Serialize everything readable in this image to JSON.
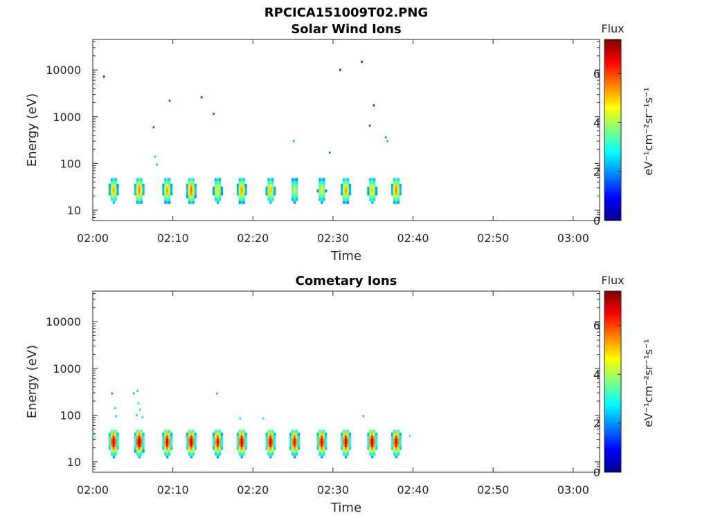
{
  "figure": {
    "title": "RPCICA151009T02.PNG"
  },
  "colors": {
    "axis": "#262626",
    "background": "#ffffff",
    "colormap": "jet"
  },
  "chart_data": [
    {
      "type": "heatmap",
      "title": "Solar Wind Ions",
      "xlabel": "Time",
      "ylabel": "Energy (eV)",
      "x_tick_labels": [
        "02:00",
        "02:10",
        "02:20",
        "02:30",
        "02:40",
        "02:50",
        "03:00"
      ],
      "x_tick_minutes": [
        0,
        10,
        20,
        30,
        40,
        50,
        60
      ],
      "xlim_minutes": [
        0,
        63.3
      ],
      "y_scale": "log",
      "ylim": [
        6,
        45000
      ],
      "y_tick_labels": [
        "10",
        "100",
        "1000",
        "10000"
      ],
      "y_tick_values": [
        10,
        100,
        1000,
        10000
      ],
      "colorbar": {
        "title": "Flux",
        "label": "eV⁻¹cm⁻²sr⁻¹s⁻¹",
        "range": [
          0,
          7.4
        ],
        "tick_labels": [
          "0",
          "2",
          "4",
          "6"
        ],
        "tick_values": [
          0,
          2,
          4,
          6
        ]
      },
      "bursts": [
        {
          "t": 2.6,
          "peak": 5.2
        },
        {
          "t": 5.8,
          "peak": 5.6
        },
        {
          "t": 9.3,
          "peak": 5.3
        },
        {
          "t": 12.3,
          "peak": 5.8
        },
        {
          "t": 15.6,
          "peak": 4.9
        },
        {
          "t": 18.6,
          "peak": 5.4
        },
        {
          "t": 22.2,
          "peak": 5.1
        },
        {
          "t": 25.2,
          "peak": 4.4
        },
        {
          "t": 28.6,
          "peak": 4.6
        },
        {
          "t": 31.6,
          "peak": 5.3
        },
        {
          "t": 34.9,
          "peak": 5.0
        },
        {
          "t": 37.9,
          "peak": 5.6
        }
      ],
      "scattered_points": [
        {
          "t": 1.4,
          "energy": 7200,
          "flux": 1.2
        },
        {
          "t": 7.6,
          "energy": 600,
          "flux": 1.6
        },
        {
          "t": 7.8,
          "energy": 140,
          "flux": 2.6
        },
        {
          "t": 8.0,
          "energy": 95,
          "flux": 2.4
        },
        {
          "t": 9.6,
          "energy": 2200,
          "flux": 1.4
        },
        {
          "t": 13.6,
          "energy": 2600,
          "flux": 1.3
        },
        {
          "t": 15.1,
          "energy": 1150,
          "flux": 1.6
        },
        {
          "t": 25.1,
          "energy": 300,
          "flux": 2.2
        },
        {
          "t": 29.6,
          "energy": 170,
          "flux": 1.8
        },
        {
          "t": 30.9,
          "energy": 10000,
          "flux": 1.1
        },
        {
          "t": 33.6,
          "energy": 15000,
          "flux": 1.0
        },
        {
          "t": 34.6,
          "energy": 640,
          "flux": 1.5
        },
        {
          "t": 35.1,
          "energy": 1750,
          "flux": 1.4
        },
        {
          "t": 36.6,
          "energy": 360,
          "flux": 2.0
        },
        {
          "t": 36.8,
          "energy": 300,
          "flux": 2.2
        }
      ]
    },
    {
      "type": "heatmap",
      "title": "Cometary Ions",
      "xlabel": "Time",
      "ylabel": "Energy (eV)",
      "x_tick_labels": [
        "02:00",
        "02:10",
        "02:20",
        "02:30",
        "02:40",
        "02:50",
        "03:00"
      ],
      "x_tick_minutes": [
        0,
        10,
        20,
        30,
        40,
        50,
        60
      ],
      "xlim_minutes": [
        0,
        63.3
      ],
      "y_scale": "log",
      "ylim": [
        6,
        45000
      ],
      "y_tick_labels": [
        "10",
        "100",
        "1000",
        "10000"
      ],
      "y_tick_values": [
        10,
        100,
        1000,
        10000
      ],
      "colorbar": {
        "title": "Flux",
        "label": "eV⁻¹cm⁻²sr⁻¹s⁻¹",
        "range": [
          0,
          7.4
        ],
        "tick_labels": [
          "0",
          "2",
          "4",
          "6"
        ],
        "tick_values": [
          0,
          2,
          4,
          6
        ]
      },
      "bursts": [
        {
          "t": 2.6,
          "peak": 7.0
        },
        {
          "t": 5.8,
          "peak": 7.2
        },
        {
          "t": 9.3,
          "peak": 6.8
        },
        {
          "t": 12.3,
          "peak": 7.0
        },
        {
          "t": 15.6,
          "peak": 6.6
        },
        {
          "t": 18.6,
          "peak": 7.0
        },
        {
          "t": 22.2,
          "peak": 6.9
        },
        {
          "t": 25.2,
          "peak": 6.6
        },
        {
          "t": 28.6,
          "peak": 6.8
        },
        {
          "t": 31.6,
          "peak": 6.9
        },
        {
          "t": 34.9,
          "peak": 7.0
        },
        {
          "t": 37.9,
          "peak": 6.8
        }
      ],
      "scattered_points": [
        {
          "t": 0.2,
          "energy": 40,
          "flux": 2.8
        },
        {
          "t": 0.3,
          "energy": 33,
          "flux": 3.6
        },
        {
          "t": 2.4,
          "energy": 290,
          "flux": 2.0
        },
        {
          "t": 2.8,
          "energy": 140,
          "flux": 2.5
        },
        {
          "t": 2.9,
          "energy": 95,
          "flux": 2.4
        },
        {
          "t": 5.1,
          "energy": 290,
          "flux": 2.2
        },
        {
          "t": 5.6,
          "energy": 330,
          "flux": 2.4
        },
        {
          "t": 5.7,
          "energy": 180,
          "flux": 2.7
        },
        {
          "t": 5.9,
          "energy": 130,
          "flux": 2.6
        },
        {
          "t": 5.5,
          "energy": 100,
          "flux": 2.5
        },
        {
          "t": 6.2,
          "energy": 90,
          "flux": 2.7
        },
        {
          "t": 15.5,
          "energy": 290,
          "flux": 2.4
        },
        {
          "t": 18.4,
          "energy": 85,
          "flux": 2.8
        },
        {
          "t": 21.3,
          "energy": 85,
          "flux": 2.7
        },
        {
          "t": 33.8,
          "energy": 95,
          "flux": 2.3
        },
        {
          "t": 39.6,
          "energy": 36,
          "flux": 3.0
        }
      ]
    }
  ]
}
